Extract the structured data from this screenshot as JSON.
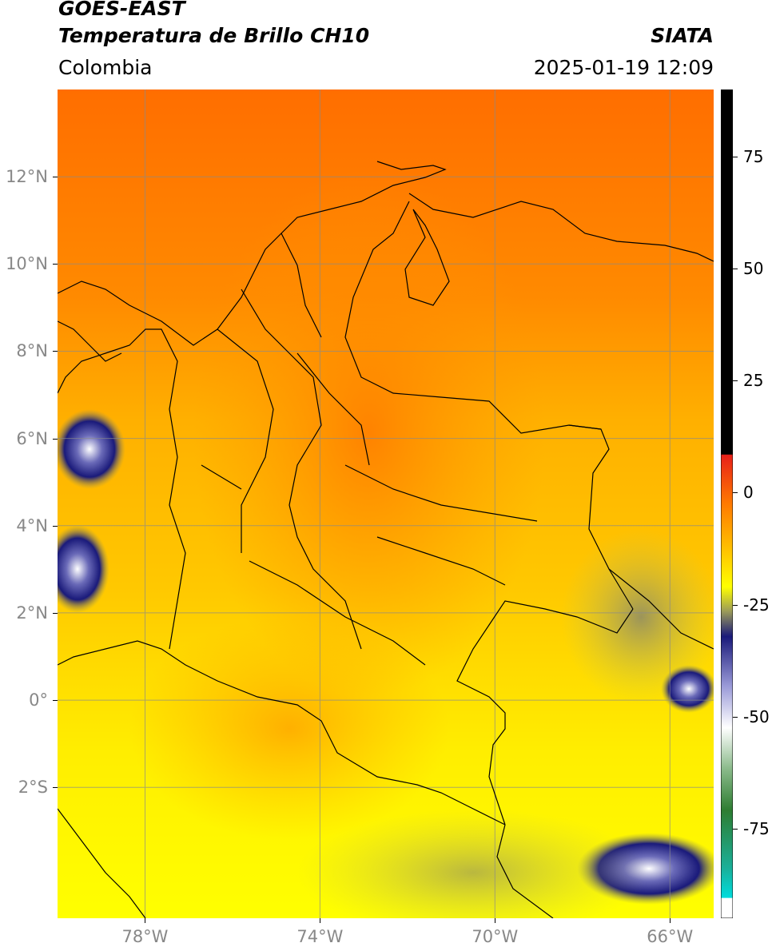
{
  "header": {
    "satellite": "GOES-EAST",
    "product": "Temperatura de Brillo CH10",
    "organization": "SIATA",
    "region": "Colombia",
    "datetime": "2025-01-19 12:09"
  },
  "map": {
    "lat_range": [
      -5,
      14
    ],
    "lon_range": [
      -80,
      -65
    ],
    "lat_ticks": [
      {
        "value": 12,
        "label": "12°N"
      },
      {
        "value": 10,
        "label": "10°N"
      },
      {
        "value": 8,
        "label": "8°N"
      },
      {
        "value": 6,
        "label": "6°N"
      },
      {
        "value": 4,
        "label": "4°N"
      },
      {
        "value": 2,
        "label": "2°N"
      },
      {
        "value": 0,
        "label": "0°"
      },
      {
        "value": -2,
        "label": "2°S"
      }
    ],
    "lon_ticks": [
      {
        "value": -78,
        "label": "78°W"
      },
      {
        "value": -74,
        "label": "74°W"
      },
      {
        "value": -70,
        "label": "70°W"
      },
      {
        "value": -66,
        "label": "66°W"
      }
    ],
    "gridlines": true
  },
  "colorbar": {
    "range": [
      -95,
      90
    ],
    "ticks": [
      {
        "value": 75,
        "label": "75"
      },
      {
        "value": 50,
        "label": "50"
      },
      {
        "value": 25,
        "label": "25"
      },
      {
        "value": 0,
        "label": "0"
      },
      {
        "value": -25,
        "label": "-25"
      },
      {
        "value": -50,
        "label": "-50"
      },
      {
        "value": -75,
        "label": "-75"
      }
    ],
    "colors": {
      "black": "#000000",
      "red": "#e8201a",
      "orange": "#ff7a00",
      "yellow": "#ffff00",
      "olive": "#9a9a5a",
      "navy": "#1a1a7a",
      "white": "#ffffff",
      "green": "#2e7d32",
      "cyan": "#00dcdc"
    }
  }
}
